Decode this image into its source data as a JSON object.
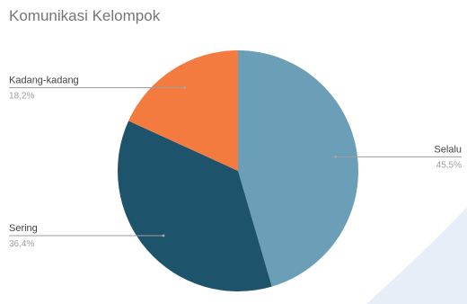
{
  "chart_data": {
    "type": "pie",
    "title": "Komunikasi Kelompok",
    "slices": [
      {
        "label": "Selalu",
        "percent_label": "45,5%",
        "value": 45.5,
        "color": "#6b9fb8"
      },
      {
        "label": "Sering",
        "percent_label": "36,4%",
        "value": 36.4,
        "color": "#1e536c"
      },
      {
        "label": "Kadang-kadang",
        "percent_label": "18,2%",
        "value": 18.2,
        "color": "#f47b3f"
      }
    ],
    "legend": "none",
    "label_style": "outside-callout"
  }
}
